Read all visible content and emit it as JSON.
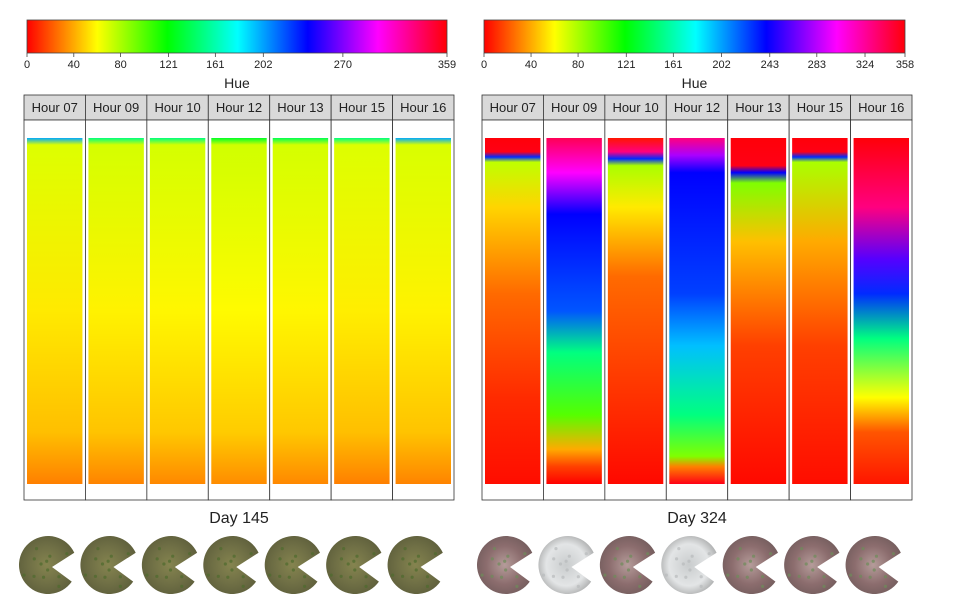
{
  "chart_data": [
    {
      "type": "heatmap",
      "title": "Day 145",
      "colorbar": {
        "label": "Hue",
        "ticks": [
          0,
          40,
          80,
          121,
          161,
          202,
          270,
          359
        ],
        "range": [
          0,
          359
        ]
      },
      "panels": [
        "Hour 07",
        "Hour 09",
        "Hour 10",
        "Hour 12",
        "Hour 13",
        "Hour 15",
        "Hour 16"
      ],
      "series": [
        {
          "name": "Hour 07",
          "stops": [
            [
              0,
              200
            ],
            [
              0.02,
              68
            ],
            [
              0.5,
              55
            ],
            [
              0.85,
              45
            ],
            [
              0.96,
              34
            ],
            [
              1,
              30
            ]
          ]
        },
        {
          "name": "Hour 09",
          "stops": [
            [
              0,
              150
            ],
            [
              0.02,
              70
            ],
            [
              0.5,
              57
            ],
            [
              0.85,
              46
            ],
            [
              0.96,
              35
            ],
            [
              1,
              31
            ]
          ]
        },
        {
          "name": "Hour 10",
          "stops": [
            [
              0,
              150
            ],
            [
              0.02,
              70
            ],
            [
              0.5,
              58
            ],
            [
              0.85,
              47
            ],
            [
              0.96,
              36
            ],
            [
              1,
              32
            ]
          ]
        },
        {
          "name": "Hour 12",
          "stops": [
            [
              0,
              130
            ],
            [
              0.02,
              71
            ],
            [
              0.5,
              59
            ],
            [
              0.85,
              48
            ],
            [
              0.96,
              37
            ],
            [
              1,
              33
            ]
          ]
        },
        {
          "name": "Hour 13",
          "stops": [
            [
              0,
              140
            ],
            [
              0.02,
              70
            ],
            [
              0.5,
              58
            ],
            [
              0.85,
              47
            ],
            [
              0.96,
              36
            ],
            [
              1,
              32
            ]
          ]
        },
        {
          "name": "Hour 15",
          "stops": [
            [
              0,
              150
            ],
            [
              0.02,
              68
            ],
            [
              0.5,
              56
            ],
            [
              0.85,
              45
            ],
            [
              0.96,
              34
            ],
            [
              1,
              30
            ]
          ]
        },
        {
          "name": "Hour 16",
          "stops": [
            [
              0,
              200
            ],
            [
              0.02,
              69
            ],
            [
              0.5,
              57
            ],
            [
              0.85,
              46
            ],
            [
              0.96,
              35
            ],
            [
              1,
              31
            ]
          ]
        }
      ]
    },
    {
      "type": "heatmap",
      "title": "Day 324",
      "colorbar": {
        "label": "Hue",
        "ticks": [
          0,
          40,
          80,
          121,
          161,
          202,
          243,
          283,
          324,
          358
        ],
        "range": [
          0,
          358
        ]
      },
      "panels": [
        "Hour 07",
        "Hour 09",
        "Hour 10",
        "Hour 12",
        "Hour 13",
        "Hour 15",
        "Hour 16"
      ],
      "series": [
        {
          "name": "Hour 07",
          "stops": [
            [
              0,
              358
            ],
            [
              0.04,
              355
            ],
            [
              0.055,
              230
            ],
            [
              0.07,
              75
            ],
            [
              0.2,
              50
            ],
            [
              0.45,
              25
            ],
            [
              0.75,
              10
            ],
            [
              1,
              3
            ]
          ]
        },
        {
          "name": "Hour 09",
          "stops": [
            [
              0,
              340
            ],
            [
              0.1,
              300
            ],
            [
              0.22,
              240
            ],
            [
              0.5,
              220
            ],
            [
              0.62,
              150
            ],
            [
              0.8,
              100
            ],
            [
              0.9,
              40
            ],
            [
              0.95,
              15
            ],
            [
              1,
              0
            ]
          ]
        },
        {
          "name": "Hour 10",
          "stops": [
            [
              0,
              5
            ],
            [
              0.04,
              330
            ],
            [
              0.06,
              230
            ],
            [
              0.08,
              80
            ],
            [
              0.2,
              55
            ],
            [
              0.4,
              25
            ],
            [
              1,
              2
            ]
          ]
        },
        {
          "name": "Hour 12",
          "stops": [
            [
              0,
              330
            ],
            [
              0.05,
              280
            ],
            [
              0.1,
              240
            ],
            [
              0.45,
              225
            ],
            [
              0.6,
              195
            ],
            [
              0.8,
              150
            ],
            [
              0.92,
              90
            ],
            [
              0.95,
              30
            ],
            [
              1,
              355
            ]
          ]
        },
        {
          "name": "Hour 13",
          "stops": [
            [
              0,
              358
            ],
            [
              0.08,
              355
            ],
            [
              0.1,
              240
            ],
            [
              0.13,
              90
            ],
            [
              0.3,
              45
            ],
            [
              0.6,
              15
            ],
            [
              1,
              2
            ]
          ]
        },
        {
          "name": "Hour 15",
          "stops": [
            [
              0,
              358
            ],
            [
              0.04,
              355
            ],
            [
              0.055,
              230
            ],
            [
              0.07,
              80
            ],
            [
              0.3,
              40
            ],
            [
              0.6,
              15
            ],
            [
              1,
              3
            ]
          ]
        },
        {
          "name": "Hour 16",
          "stops": [
            [
              0,
              358
            ],
            [
              0.2,
              330
            ],
            [
              0.35,
              260
            ],
            [
              0.45,
              230
            ],
            [
              0.58,
              150
            ],
            [
              0.75,
              60
            ],
            [
              0.85,
              20
            ],
            [
              1,
              5
            ]
          ]
        }
      ]
    }
  ],
  "thumbnails": {
    "left": {
      "colors": [
        "#6f6f45",
        "#85844f",
        "#5b5c3a"
      ]
    },
    "right": {
      "colors": [
        "#8c6d6e",
        "#b59c9a",
        "#6f5a5a"
      ],
      "faded": [
        1,
        3
      ]
    }
  }
}
